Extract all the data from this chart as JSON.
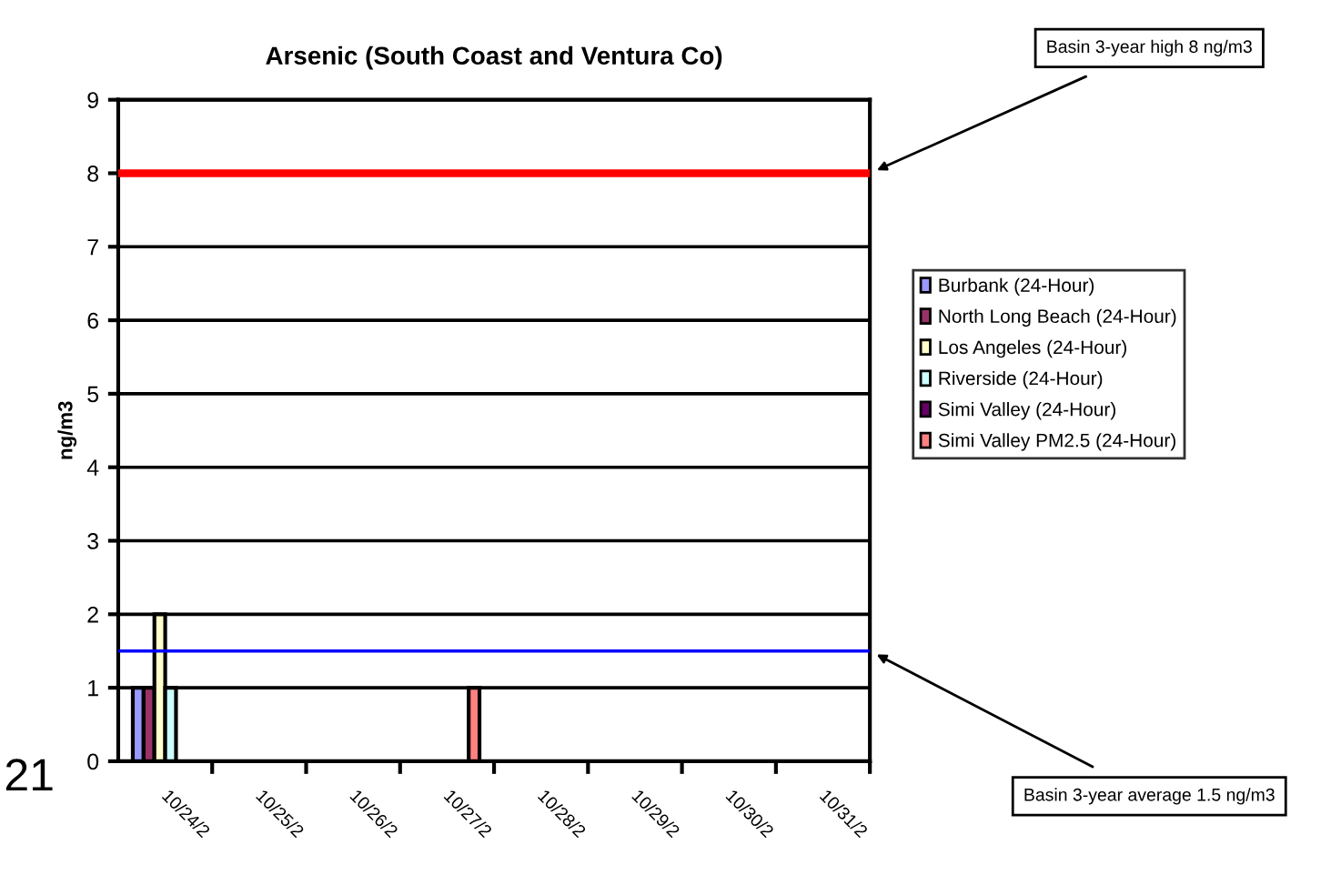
{
  "chart_data": {
    "type": "bar",
    "title": "Arsenic (South Coast and Ventura Co)",
    "ylabel": "ng/m3",
    "categories": [
      "10/24/2",
      "10/25/2",
      "10/26/2",
      "10/27/2",
      "10/28/2",
      "10/29/2",
      "10/30/2",
      "10/31/2"
    ],
    "series": [
      {
        "name": "Burbank (24-Hour)",
        "color": "#9999ff",
        "values": [
          1,
          null,
          null,
          null,
          null,
          null,
          null,
          null
        ]
      },
      {
        "name": "North Long Beach (24-Hour)",
        "color": "#993366",
        "values": [
          1,
          null,
          null,
          null,
          null,
          null,
          null,
          null
        ]
      },
      {
        "name": "Los Angeles (24-Hour)",
        "color": "#ffffcc",
        "values": [
          2,
          null,
          null,
          null,
          null,
          null,
          null,
          null
        ]
      },
      {
        "name": "Riverside (24-Hour)",
        "color": "#ccffff",
        "values": [
          1,
          null,
          null,
          null,
          null,
          null,
          null,
          null
        ]
      },
      {
        "name": "Simi Valley (24-Hour)",
        "color": "#660066",
        "values": [
          null,
          null,
          null,
          null,
          null,
          null,
          null,
          null
        ]
      },
      {
        "name": "Simi Valley PM2.5 (24-Hour)",
        "color": "#ff8080",
        "values": [
          null,
          null,
          null,
          1,
          null,
          null,
          null,
          null
        ]
      }
    ],
    "ylim": [
      0,
      9
    ],
    "yticks": [
      0,
      1,
      2,
      3,
      4,
      5,
      6,
      7,
      8,
      9
    ],
    "grid": "y",
    "legend": "right",
    "ref_lines": [
      {
        "axis": "y",
        "value": 8,
        "label": "Basin 3-year high 8 ng/m3",
        "color": "#ff0000",
        "line_style": "solid"
      },
      {
        "axis": "y",
        "value": 1.5,
        "label": "Basin 3-year average 1.5 ng/m3",
        "color": "#0000ff",
        "line_style": "solid"
      }
    ],
    "annotations": [
      "21"
    ]
  }
}
